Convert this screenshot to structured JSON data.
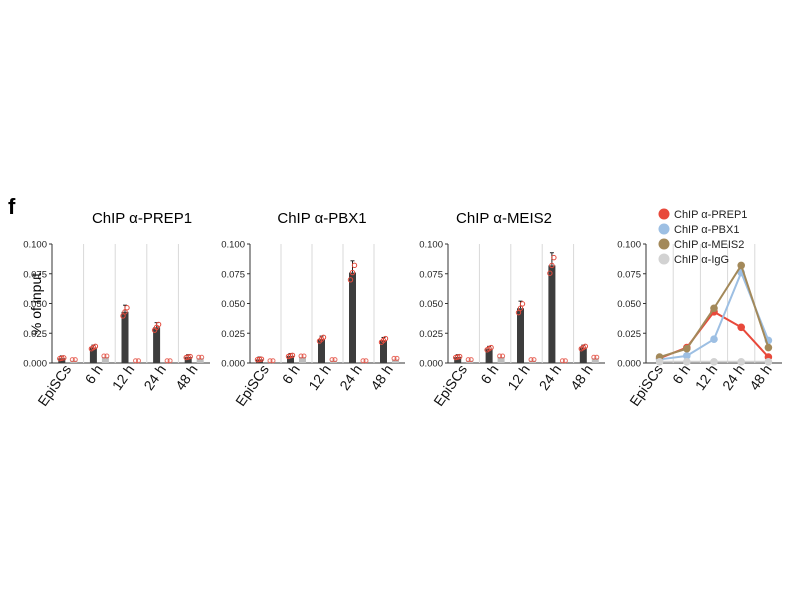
{
  "figure": {
    "panel_letter": "f",
    "ylabel": "% of input"
  },
  "chart_data": [
    {
      "type": "bar",
      "title": "ChIP α-PREP1",
      "xlabel": "",
      "ylabel": "% of input",
      "ylim": [
        0,
        0.1
      ],
      "yticks": [
        "0.100",
        "0.075",
        "0.050",
        "0.025",
        "0.000"
      ],
      "categories": [
        "EpiSCs",
        "6 h",
        "12 h",
        "24 h",
        "48 h"
      ],
      "series": [
        {
          "values": [
            0.004,
            0.013,
            0.043,
            0.03,
            0.005
          ]
        },
        {
          "values": [
            0.002,
            0.005,
            0.001,
            0.001,
            0.004
          ]
        }
      ],
      "points_color": "#e34a3c",
      "bar_colors": [
        "#3d3d3d",
        "#bdbdbd"
      ],
      "grid": "vertical-separators"
    },
    {
      "type": "bar",
      "title": "ChIP α-PBX1",
      "xlabel": "",
      "ylabel": "",
      "ylim": [
        0,
        0.1
      ],
      "yticks": [
        "0.100",
        "0.075",
        "0.050",
        "0.025",
        "0.000"
      ],
      "categories": [
        "EpiSCs",
        "6 h",
        "12 h",
        "24 h",
        "48 h"
      ],
      "series": [
        {
          "values": [
            0.003,
            0.006,
            0.02,
            0.076,
            0.019
          ]
        },
        {
          "values": [
            0.001,
            0.005,
            0.002,
            0.001,
            0.003
          ]
        }
      ],
      "points_color": "#e34a3c",
      "bar_colors": [
        "#3d3d3d",
        "#bdbdbd"
      ],
      "grid": "vertical-separators"
    },
    {
      "type": "bar",
      "title": "ChIP α-MEIS2",
      "xlabel": "",
      "ylabel": "",
      "ylim": [
        0,
        0.1
      ],
      "yticks": [
        "0.100",
        "0.075",
        "0.050",
        "0.025",
        "0.000"
      ],
      "categories": [
        "EpiSCs",
        "6 h",
        "12 h",
        "24 h",
        "48 h"
      ],
      "series": [
        {
          "values": [
            0.005,
            0.012,
            0.046,
            0.082,
            0.013
          ]
        },
        {
          "values": [
            0.002,
            0.005,
            0.002,
            0.001,
            0.004
          ]
        }
      ],
      "points_color": "#e34a3c",
      "bar_colors": [
        "#3d3d3d",
        "#bdbdbd"
      ],
      "grid": "vertical-separators"
    },
    {
      "type": "line",
      "title": "",
      "xlabel": "",
      "ylabel": "",
      "ylim": [
        0,
        0.1
      ],
      "yticks": [
        "0.100",
        "0.075",
        "0.050",
        "0.025",
        "0.000"
      ],
      "categories": [
        "EpiSCs",
        "6 h",
        "12 h",
        "24 h",
        "48 h"
      ],
      "legend_position": "top",
      "series": [
        {
          "name": "ChIP α-PREP1",
          "color": "#e8493b",
          "values": [
            0.004,
            0.013,
            0.043,
            0.03,
            0.005
          ]
        },
        {
          "name": "ChIP α-PBX1",
          "color": "#9dbfe3",
          "values": [
            0.003,
            0.006,
            0.02,
            0.076,
            0.019
          ]
        },
        {
          "name": "ChIP α-MEIS2",
          "color": "#a3895a",
          "values": [
            0.005,
            0.012,
            0.046,
            0.082,
            0.013
          ]
        },
        {
          "name": "ChIP α-IgG",
          "color": "#d2d2d2",
          "values": [
            0.001,
            0.001,
            0.001,
            0.001,
            0.001
          ]
        }
      ],
      "grid": "vertical-separators"
    }
  ]
}
